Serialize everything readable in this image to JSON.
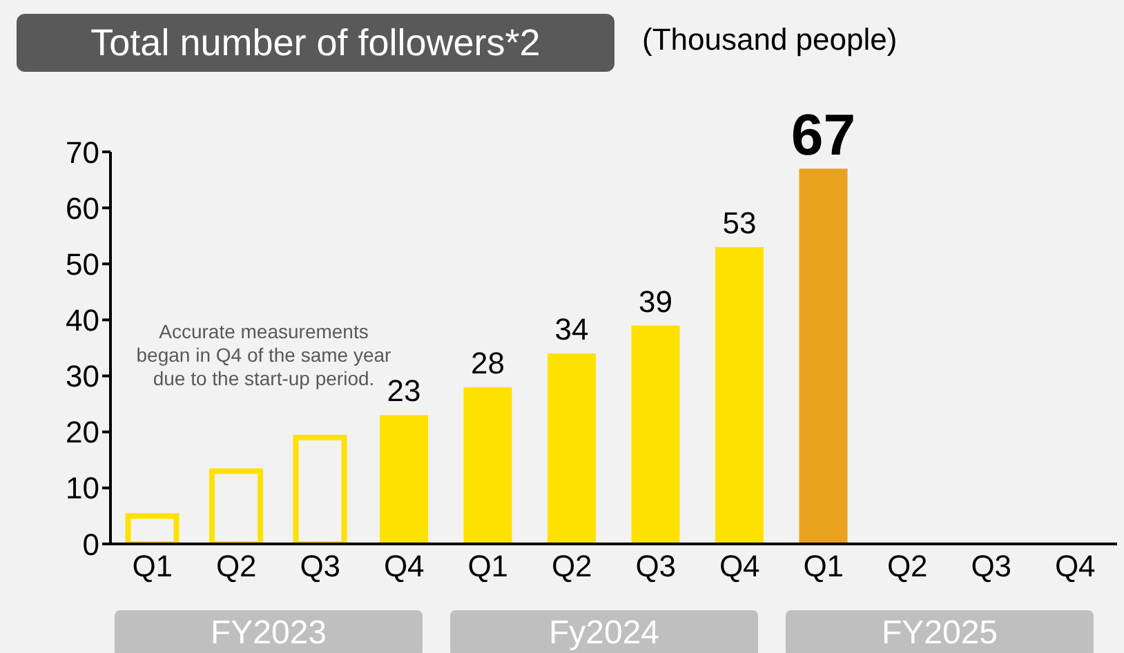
{
  "chart_data": {
    "type": "bar",
    "title": "Total number of followers*2",
    "subtitle": "(Thousand people)",
    "categories": [
      "Q1",
      "Q2",
      "Q3",
      "Q4",
      "Q1",
      "Q2",
      "Q3",
      "Q4",
      "Q1",
      "Q2",
      "Q3",
      "Q4"
    ],
    "values": [
      5,
      13,
      19,
      23,
      28,
      34,
      39,
      53,
      67,
      null,
      null,
      null
    ],
    "colors": [
      "#ffe100",
      "#ffe100",
      "#ffe100",
      "#ffe100",
      "#ffe100",
      "#ffe100",
      "#ffe100",
      "#ffe100",
      "#e8a21e",
      "#ffe100",
      "#ffe100",
      "#ffe100"
    ],
    "value_labels": [
      null,
      null,
      null,
      "23",
      "28",
      "34",
      "39",
      "53",
      "67",
      null,
      null,
      null
    ],
    "annotations": [
      "Accurate measurements began in Q4 of the same year due to the start-up period.",
      "FY2023",
      "Fy2024",
      "FY2025"
    ],
    "ylim": [
      0,
      70
    ],
    "yticks": [
      0,
      10,
      20,
      30,
      40,
      50,
      60,
      70
    ],
    "grid": false,
    "legend": false
  }
}
